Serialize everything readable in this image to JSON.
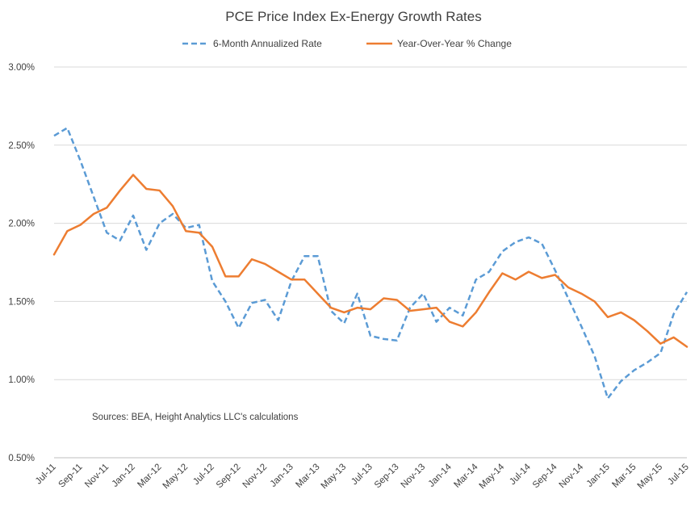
{
  "chart_data": {
    "type": "line",
    "title": "PCE Price Index Ex-Energy Growth Rates",
    "xlabel": "",
    "ylabel": "",
    "ylim": [
      0.5,
      3.0
    ],
    "yticks": [
      "0.50%",
      "1.00%",
      "1.50%",
      "2.00%",
      "2.50%",
      "3.00%"
    ],
    "ytick_values": [
      0.5,
      1.0,
      1.5,
      2.0,
      2.5,
      3.0
    ],
    "grid": "horizontal",
    "legend_position": "top",
    "annotation": "Sources: BEA, Height Analytics LLC's calculations",
    "categories": [
      "Jul-11",
      "Aug-11",
      "Sep-11",
      "Oct-11",
      "Nov-11",
      "Dec-11",
      "Jan-12",
      "Feb-12",
      "Mar-12",
      "Apr-12",
      "May-12",
      "Jun-12",
      "Jul-12",
      "Aug-12",
      "Sep-12",
      "Oct-12",
      "Nov-12",
      "Dec-12",
      "Jan-13",
      "Feb-13",
      "Mar-13",
      "Apr-13",
      "May-13",
      "Jun-13",
      "Jul-13",
      "Aug-13",
      "Sep-13",
      "Oct-13",
      "Nov-13",
      "Dec-13",
      "Jan-14",
      "Feb-14",
      "Mar-14",
      "Apr-14",
      "May-14",
      "Jun-14",
      "Jul-14",
      "Aug-14",
      "Sep-14",
      "Oct-14",
      "Nov-14",
      "Dec-14",
      "Jan-15",
      "Feb-15",
      "Mar-15",
      "Apr-15",
      "May-15",
      "Jun-15",
      "Jul-15"
    ],
    "x_tick_labels": [
      "Jul-11",
      "Sep-11",
      "Nov-11",
      "Jan-12",
      "Mar-12",
      "May-12",
      "Jul-12",
      "Sep-12",
      "Nov-12",
      "Jan-13",
      "Mar-13",
      "May-13",
      "Jul-13",
      "Sep-13",
      "Nov-13",
      "Jan-14",
      "Mar-14",
      "May-14",
      "Jul-14",
      "Sep-14",
      "Nov-14",
      "Jan-15",
      "Mar-15",
      "May-15",
      "Jul-15"
    ],
    "series": [
      {
        "name": "6-Month Annualized Rate",
        "color": "#5B9BD5",
        "style": "dashed",
        "values": [
          2.56,
          2.61,
          2.4,
          2.17,
          1.94,
          1.89,
          2.05,
          1.83,
          2.0,
          2.06,
          1.97,
          1.99,
          1.63,
          1.5,
          1.33,
          1.49,
          1.51,
          1.38,
          1.63,
          1.79,
          1.79,
          1.44,
          1.36,
          1.55,
          1.28,
          1.26,
          1.25,
          1.46,
          1.55,
          1.37,
          1.46,
          1.41,
          1.64,
          1.69,
          1.82,
          1.88,
          1.91,
          1.87,
          1.7,
          1.52,
          1.34,
          1.15,
          0.88,
          0.99,
          1.06,
          1.11,
          1.17,
          1.42,
          1.56
        ]
      },
      {
        "name": "Year-Over-Year % Change",
        "color": "#ED7D31",
        "style": "solid",
        "values": [
          1.8,
          1.95,
          1.99,
          2.06,
          2.1,
          2.21,
          2.31,
          2.22,
          2.21,
          2.11,
          1.95,
          1.94,
          1.85,
          1.66,
          1.66,
          1.77,
          1.74,
          1.69,
          1.64,
          1.64,
          1.55,
          1.46,
          1.43,
          1.46,
          1.45,
          1.52,
          1.51,
          1.44,
          1.45,
          1.46,
          1.37,
          1.34,
          1.43,
          1.56,
          1.68,
          1.64,
          1.69,
          1.65,
          1.67,
          1.59,
          1.55,
          1.5,
          1.4,
          1.43,
          1.38,
          1.31,
          1.23,
          1.27,
          1.21
        ]
      }
    ]
  }
}
